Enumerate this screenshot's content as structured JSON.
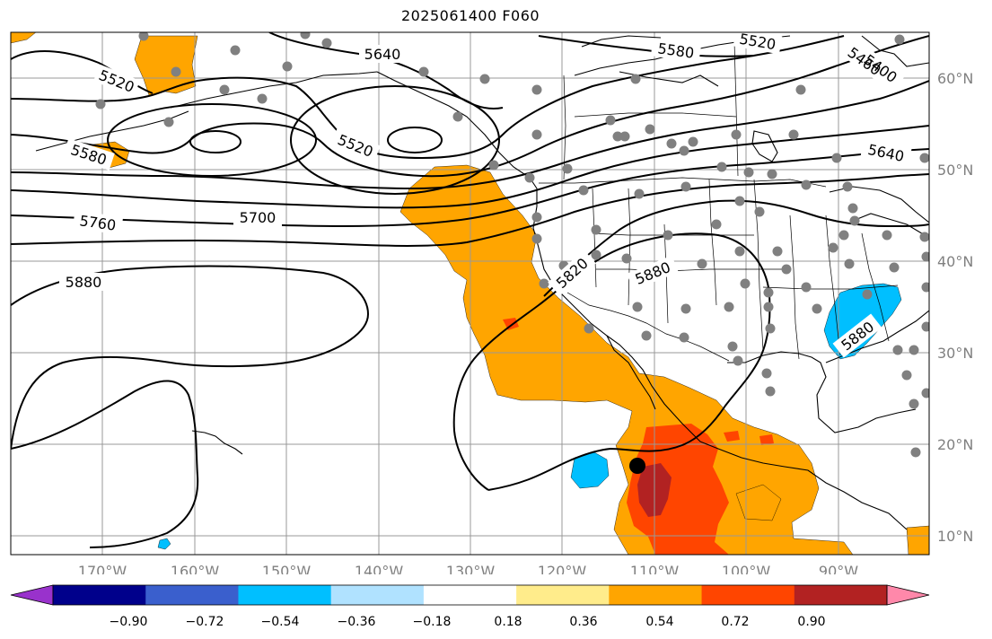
{
  "title": "2025061400 F060",
  "map": {
    "lat_labels": [
      "60°N",
      "50°N",
      "40°N",
      "30°N",
      "20°N",
      "10°N"
    ],
    "lon_labels": [
      "170°W",
      "160°W",
      "150°W",
      "140°W",
      "130°W",
      "120°W",
      "110°W",
      "100°W",
      "90°W"
    ],
    "contour_labels": [
      "5520",
      "5640",
      "5580",
      "5520",
      "5400",
      "5460",
      "5520",
      "5580",
      "5640",
      "5700",
      "5760",
      "5880",
      "5820",
      "5880",
      "5880"
    ],
    "colors": {
      "positive_fill": "#FFA500",
      "strong_positive_fill": "#FF4500",
      "strongest_positive_fill": "#B22222",
      "negative_fill": "#00BFFF",
      "station_marker": "#808080",
      "contour": "#000000",
      "gridline": "#999999"
    }
  },
  "colorbar": {
    "ticks": [
      "−0.90",
      "−0.72",
      "−0.54",
      "−0.36",
      "−0.18",
      "0.18",
      "0.36",
      "0.54",
      "0.72",
      "0.90"
    ],
    "colors": [
      "#9932CC",
      "#00008B",
      "#3A5FCD",
      "#00BFFF",
      "#B0E2FF",
      "#FFFFFF",
      "#FFEC8B",
      "#FFA500",
      "#FF4500",
      "#B22222",
      "#FF88AA"
    ]
  }
}
